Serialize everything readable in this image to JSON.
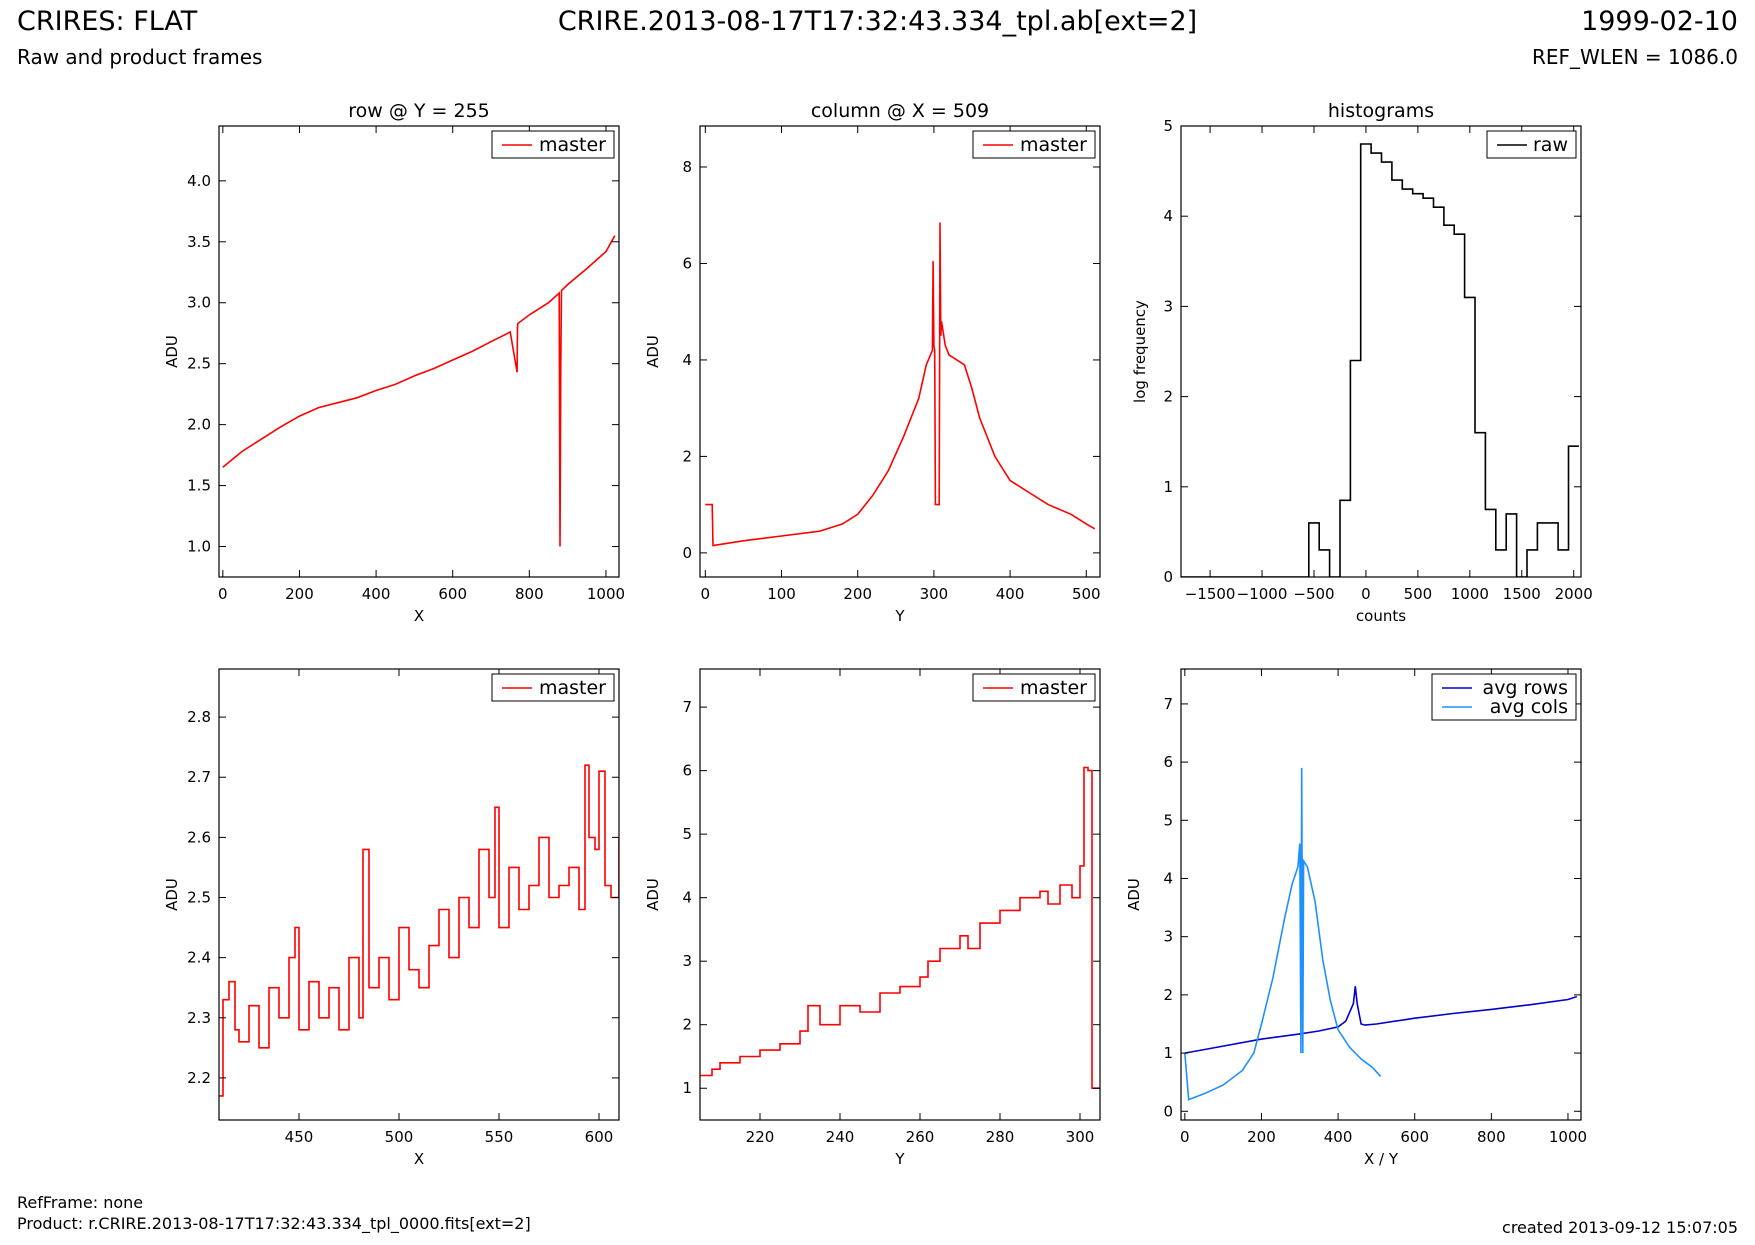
{
  "header": {
    "title": "CRIRES: FLAT",
    "subtitle": "Raw and product frames",
    "file_name": "CRIRE.2013-08-17T17:32:43.334_tpl.ab[ext=2]",
    "date": "1999-02-10",
    "ref_wlen": "REF_WLEN = 1086.0"
  },
  "footer": {
    "ref_frame": "RefFrame: none",
    "product": "Product: r.CRIRE.2013-08-17T17:32:43.334_tpl_0000.fits[ext=2]",
    "created": "created 2013-09-12 15:07:05"
  },
  "colors": {
    "master": "#ff0000",
    "raw": "#000000",
    "avg_rows": "#0000cc",
    "avg_cols": "#1e90ff"
  },
  "chart_data": [
    {
      "id": "row-plot",
      "type": "line",
      "title": "row @ Y = 255",
      "xlabel": "X",
      "ylabel": "ADU",
      "xlim": [
        -10,
        1034
      ],
      "ylim": [
        0.75,
        4.45
      ],
      "xticks": [
        0,
        200,
        400,
        600,
        800,
        1000
      ],
      "yticks": [
        1.0,
        1.5,
        2.0,
        2.5,
        3.0,
        3.5,
        4.0
      ],
      "legend": "upper right",
      "series": [
        {
          "name": "master",
          "color": "#ff0000",
          "x": [
            0,
            50,
            100,
            150,
            200,
            250,
            300,
            350,
            400,
            450,
            500,
            550,
            600,
            650,
            700,
            750,
            768,
            769,
            770,
            800,
            850,
            878,
            880,
            882,
            884,
            900,
            950,
            1000,
            1023
          ],
          "y": [
            1.65,
            1.78,
            1.88,
            1.98,
            2.07,
            2.14,
            2.18,
            2.22,
            2.28,
            2.33,
            2.4,
            2.46,
            2.53,
            2.6,
            2.68,
            2.76,
            2.43,
            2.8,
            2.83,
            2.9,
            3.0,
            3.08,
            1.0,
            2.5,
            3.1,
            3.15,
            3.28,
            3.42,
            3.55
          ]
        }
      ]
    },
    {
      "id": "column-plot",
      "type": "line",
      "title": "column @ X = 509",
      "xlabel": "Y",
      "ylabel": "ADU",
      "xlim": [
        -7,
        518
      ],
      "ylim": [
        -0.5,
        8.85
      ],
      "xticks": [
        0,
        100,
        200,
        300,
        400,
        500
      ],
      "yticks": [
        0,
        2,
        4,
        6,
        8
      ],
      "legend": "upper right",
      "series": [
        {
          "name": "master",
          "color": "#ff0000",
          "x": [
            0,
            9,
            10,
            50,
            100,
            150,
            180,
            200,
            220,
            240,
            260,
            280,
            290,
            298,
            299,
            300,
            301,
            302,
            303,
            304,
            305,
            306,
            307,
            308,
            309,
            310,
            315,
            320,
            330,
            340,
            350,
            360,
            380,
            400,
            430,
            450,
            480,
            500,
            511
          ],
          "y": [
            1.0,
            1.0,
            0.15,
            0.25,
            0.35,
            0.45,
            0.6,
            0.8,
            1.2,
            1.7,
            2.4,
            3.2,
            3.9,
            4.2,
            6.05,
            4.3,
            4.2,
            1.0,
            1.0,
            1.0,
            1.0,
            1.0,
            1.0,
            6.85,
            4.5,
            4.8,
            4.3,
            4.1,
            4.0,
            3.9,
            3.4,
            2.8,
            2.0,
            1.5,
            1.2,
            1.0,
            0.8,
            0.6,
            0.5
          ]
        }
      ]
    },
    {
      "id": "histogram-plot",
      "type": "line",
      "title": "histograms",
      "xlabel": "counts",
      "ylabel": "log frequency",
      "xlim": [
        -1780,
        2070
      ],
      "ylim": [
        0,
        5
      ],
      "xticks": [
        -1500,
        -1000,
        -500,
        0,
        500,
        1000,
        1500,
        2000
      ],
      "yticks": [
        0,
        1,
        2,
        3,
        4,
        5
      ],
      "legend": "upper right",
      "series": [
        {
          "name": "raw",
          "color": "#000000",
          "step_edges": [
            -1780,
            -550,
            -450,
            -350,
            -250,
            -150,
            -50,
            50,
            150,
            250,
            350,
            450,
            550,
            650,
            750,
            850,
            950,
            1050,
            1150,
            1250,
            1350,
            1450,
            1550,
            1650,
            1750,
            1850,
            1950,
            2050
          ],
          "step_values": [
            0,
            0.6,
            0.3,
            0,
            0.85,
            2.4,
            4.8,
            4.7,
            4.6,
            4.4,
            4.3,
            4.25,
            4.2,
            4.1,
            3.9,
            3.8,
            3.1,
            1.6,
            0.75,
            0.3,
            0.7,
            0,
            0.3,
            0.6,
            0.6,
            0.3,
            1.45
          ]
        }
      ]
    },
    {
      "id": "row-zoom-plot",
      "type": "line",
      "title": "",
      "xlabel": "X",
      "ylabel": "ADU",
      "xlim": [
        410,
        610
      ],
      "ylim": [
        2.13,
        2.88
      ],
      "xticks": [
        450,
        500,
        550,
        600
      ],
      "yticks": [
        2.2,
        2.3,
        2.4,
        2.5,
        2.6,
        2.7,
        2.8
      ],
      "legend": "upper right",
      "series": [
        {
          "name": "master",
          "color": "#ff0000",
          "x": [
            410,
            412,
            415,
            418,
            420,
            425,
            430,
            435,
            440,
            445,
            448,
            450,
            455,
            460,
            465,
            470,
            475,
            480,
            482,
            485,
            490,
            495,
            500,
            505,
            510,
            515,
            520,
            525,
            530,
            535,
            540,
            545,
            548,
            550,
            555,
            560,
            565,
            570,
            575,
            580,
            585,
            590,
            593,
            595,
            598,
            600,
            603,
            606,
            610
          ],
          "y": [
            2.17,
            2.33,
            2.36,
            2.28,
            2.26,
            2.32,
            2.25,
            2.35,
            2.3,
            2.4,
            2.45,
            2.28,
            2.36,
            2.3,
            2.35,
            2.28,
            2.4,
            2.3,
            2.58,
            2.35,
            2.4,
            2.33,
            2.45,
            2.38,
            2.35,
            2.42,
            2.48,
            2.4,
            2.5,
            2.45,
            2.58,
            2.5,
            2.65,
            2.45,
            2.55,
            2.48,
            2.52,
            2.6,
            2.5,
            2.52,
            2.55,
            2.48,
            2.72,
            2.6,
            2.58,
            2.71,
            2.52,
            2.5,
            2.6
          ]
        }
      ]
    },
    {
      "id": "column-zoom-plot",
      "type": "line",
      "title": "",
      "xlabel": "Y",
      "ylabel": "ADU",
      "xlim": [
        205,
        305
      ],
      "ylim": [
        0.5,
        7.6
      ],
      "xticks": [
        220,
        240,
        260,
        280,
        300
      ],
      "yticks": [
        1,
        2,
        3,
        4,
        5,
        6,
        7
      ],
      "legend": "upper right",
      "series": [
        {
          "name": "master",
          "color": "#ff0000",
          "x": [
            205,
            208,
            210,
            215,
            220,
            225,
            230,
            232,
            235,
            240,
            245,
            250,
            255,
            260,
            262,
            265,
            270,
            272,
            275,
            280,
            285,
            290,
            292,
            295,
            298,
            300,
            301,
            302,
            303,
            305
          ],
          "y": [
            1.2,
            1.3,
            1.4,
            1.5,
            1.6,
            1.7,
            1.9,
            2.3,
            2.0,
            2.3,
            2.2,
            2.5,
            2.6,
            2.75,
            3.0,
            3.2,
            3.4,
            3.2,
            3.6,
            3.8,
            4.0,
            4.1,
            3.9,
            4.2,
            4.0,
            4.5,
            6.05,
            6.0,
            1.0,
            1.0
          ]
        }
      ]
    },
    {
      "id": "averages-plot",
      "type": "line",
      "title": "",
      "xlabel": "X / Y",
      "ylabel": "ADU",
      "xlim": [
        -10,
        1034
      ],
      "ylim": [
        -0.15,
        7.6
      ],
      "xticks": [
        0,
        200,
        400,
        600,
        800,
        1000
      ],
      "yticks": [
        0,
        1,
        2,
        3,
        4,
        5,
        6,
        7
      ],
      "legend": "upper right",
      "series": [
        {
          "name": "avg rows",
          "color": "#0000cc",
          "x": [
            0,
            100,
            200,
            300,
            350,
            400,
            420,
            440,
            445,
            450,
            460,
            470,
            500,
            600,
            700,
            800,
            900,
            1000,
            1023
          ],
          "y": [
            1.0,
            1.12,
            1.24,
            1.33,
            1.38,
            1.45,
            1.55,
            1.85,
            2.15,
            1.85,
            1.5,
            1.48,
            1.5,
            1.6,
            1.68,
            1.75,
            1.83,
            1.92,
            1.97
          ]
        },
        {
          "name": "avg cols",
          "color": "#1e90ff",
          "x": [
            0,
            10,
            50,
            100,
            150,
            180,
            200,
            230,
            260,
            280,
            295,
            300,
            303,
            305,
            308,
            310,
            320,
            340,
            360,
            380,
            400,
            430,
            460,
            490,
            511
          ],
          "y": [
            1.0,
            0.2,
            0.3,
            0.45,
            0.7,
            1.0,
            1.5,
            2.3,
            3.3,
            3.9,
            4.2,
            4.6,
            1.0,
            5.9,
            1.0,
            4.3,
            4.2,
            3.6,
            2.6,
            1.9,
            1.4,
            1.1,
            0.9,
            0.75,
            0.6
          ]
        }
      ]
    }
  ]
}
